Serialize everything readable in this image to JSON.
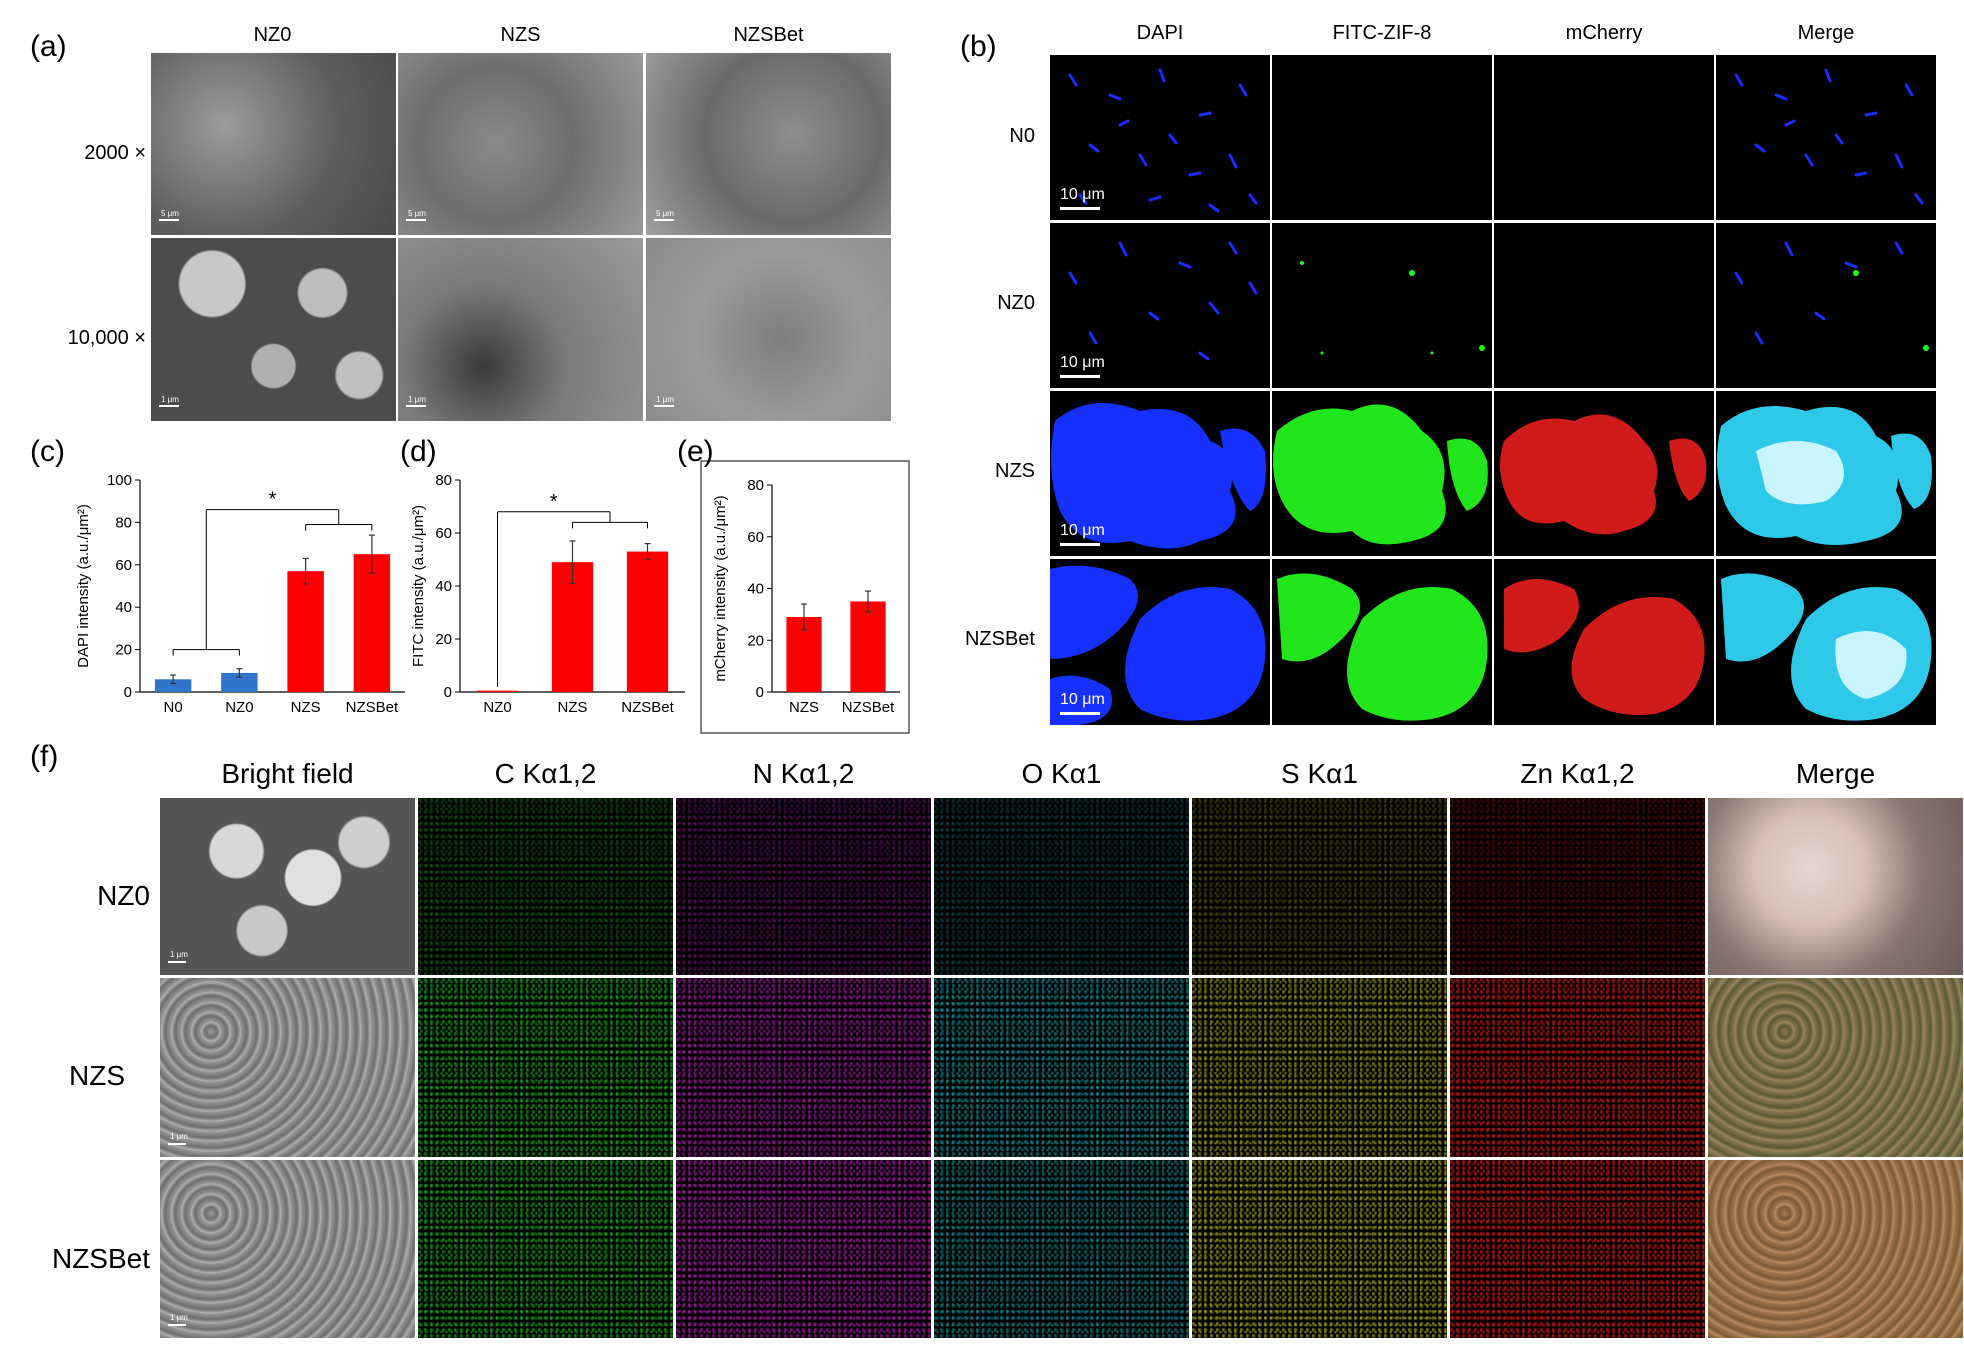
{
  "panel_labels": {
    "a": "(a)",
    "b": "(b)",
    "c": "(c)",
    "d": "(d)",
    "e": "(e)",
    "f": "(f)"
  },
  "panel_a": {
    "columns": [
      "NZ0",
      "NZS",
      "NZSBet"
    ],
    "rows": [
      "2000 ×",
      "10,000 ×"
    ],
    "scale_labels": [
      "5 μm",
      "1 μm"
    ]
  },
  "panel_b": {
    "columns": [
      "DAPI",
      "FITC-ZIF-8",
      "mCherry",
      "Merge"
    ],
    "rows": [
      "N0",
      "NZ0",
      "NZS",
      "NZSBet"
    ],
    "scale_label": "10 μm"
  },
  "panel_f": {
    "columns": [
      "Bright field",
      "C Kα1,2",
      "N Kα1,2",
      "O Kα1",
      "S Kα1",
      "Zn Kα1,2",
      "Merge"
    ],
    "rows": [
      "NZ0",
      "NZS",
      "NZSBet"
    ],
    "scale_label": "1 μm"
  },
  "colors": {
    "blue_bar": "#2f75c9",
    "red_bar": "#ff0000",
    "error": "#333333"
  },
  "chart_data": [
    {
      "type": "bar",
      "panel": "c",
      "ylabel": "DAPI intensity (a.u./μm²)",
      "categories": [
        "N0",
        "NZ0",
        "NZS",
        "NZSBet"
      ],
      "values": [
        6,
        9,
        57,
        65
      ],
      "errors": [
        2,
        2,
        6,
        9
      ],
      "bar_colors": [
        "#2f75c9",
        "#2f75c9",
        "#ff0000",
        "#ff0000"
      ],
      "ylim": [
        0,
        100
      ],
      "yticks": [
        0,
        20,
        40,
        60,
        80,
        100
      ],
      "significance": "*"
    },
    {
      "type": "bar",
      "panel": "d",
      "ylabel": "FITC intensity (a.u./μm²)",
      "categories": [
        "NZ0",
        "NZS",
        "NZSBet"
      ],
      "values": [
        0.5,
        49,
        53
      ],
      "errors": [
        0,
        8,
        3
      ],
      "bar_colors": [
        "#ff0000",
        "#ff0000",
        "#ff0000"
      ],
      "ylim": [
        0,
        80
      ],
      "yticks": [
        0,
        20,
        40,
        60,
        80
      ],
      "significance": "*"
    },
    {
      "type": "bar",
      "panel": "e",
      "ylabel": "mCherry intensity (a.u./μm²)",
      "categories": [
        "NZS",
        "NZSBet"
      ],
      "values": [
        29,
        35
      ],
      "errors": [
        5,
        4
      ],
      "bar_colors": [
        "#ff0000",
        "#ff0000"
      ],
      "ylim": [
        0,
        80
      ],
      "yticks": [
        0,
        20,
        40,
        60,
        80
      ]
    }
  ]
}
